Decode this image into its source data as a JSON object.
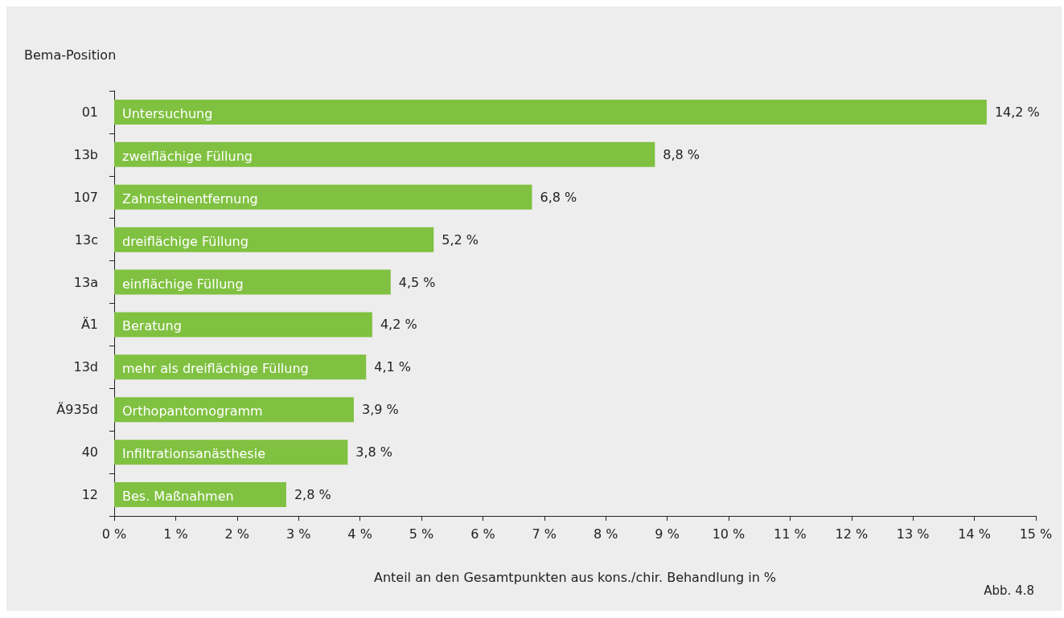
{
  "chart_data": {
    "type": "bar",
    "orientation": "horizontal",
    "ylabel": "Bema-Position",
    "xlabel": "Anteil an den Gesamtpunkten aus kons./chir. Behandlung in %",
    "categories": [
      "01",
      "13b",
      "107",
      "13c",
      "13a",
      "Ä1",
      "13d",
      "Ä935d",
      "40",
      "12"
    ],
    "values": [
      14.2,
      8.8,
      6.8,
      5.2,
      4.5,
      4.2,
      4.1,
      3.9,
      3.8,
      2.8
    ],
    "value_labels": [
      "14,2 %",
      "8,8 %",
      "6,8 %",
      "5,2 %",
      "4,5 %",
      "4,2 %",
      "4,1 %",
      "3,9 %",
      "3,8 %",
      "2,8 %"
    ],
    "color": "#80c141",
    "xlim": [
      0,
      15
    ],
    "xticks": [
      {
        "value": 0,
        "label": "0 %"
      },
      {
        "value": 1,
        "label": "1 %"
      },
      {
        "value": 2,
        "label": "2 %"
      },
      {
        "value": 3,
        "label": "3 %"
      },
      {
        "value": 4,
        "label": "4 %"
      },
      {
        "value": 5,
        "label": "5 %"
      },
      {
        "value": 6,
        "label": "6 %"
      },
      {
        "value": 7,
        "label": "7 %"
      },
      {
        "value": 8,
        "label": "8 %"
      },
      {
        "value": 9,
        "label": "9 %"
      },
      {
        "value": 10,
        "label": "10 %"
      },
      {
        "value": 11,
        "label": "11 %"
      },
      {
        "value": 12,
        "label": "12 %"
      },
      {
        "value": 13,
        "label": "13 %"
      },
      {
        "value": 14,
        "label": "14 %"
      },
      {
        "value": 15,
        "label": "15 %"
      }
    ],
    "grid": false,
    "annotations": [
      "Untersuchung",
      "zweiflächige Füllung",
      "Zahnsteinentfernung",
      "dreiflächige Füllung",
      "einflächige Füllung",
      "Beratung",
      "mehr als dreiflächige Füllung",
      "Orthopantomogramm",
      "Infiltrationsanästhesie",
      "Bes. Maßnahmen",
      "Abb. 4.8"
    ]
  }
}
